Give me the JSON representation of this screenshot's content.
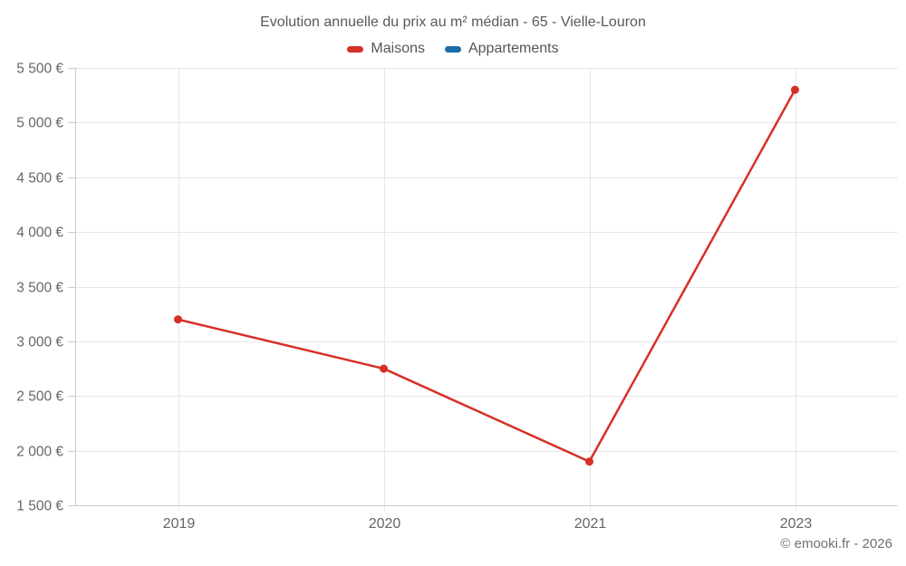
{
  "title": "Evolution annuelle du prix au m² médian - 65 - Vielle-Louron",
  "legend": [
    {
      "label": "Maisons",
      "color": "#d73027"
    },
    {
      "label": "Appartements",
      "color": "#1b6ca8"
    }
  ],
  "footer": {
    "copyright": "© emooki.fr - 2026"
  },
  "colors": {
    "gridline": "#e6e6e6",
    "axis": "#cccccc",
    "tick_text": "#666666"
  },
  "chart_data": {
    "type": "line",
    "title": "Evolution annuelle du prix au m² médian - 65 - Vielle-Louron",
    "categories": [
      "2019",
      "2020",
      "2021",
      "2023"
    ],
    "series": [
      {
        "name": "Maisons",
        "color": "#d73027",
        "values": [
          3200,
          2750,
          1900,
          5300
        ]
      },
      {
        "name": "Appartements",
        "color": "#1b6ca8",
        "values": []
      }
    ],
    "xlabel": "",
    "ylabel": "",
    "ylim": [
      1500,
      5500
    ],
    "ytick_step": 500,
    "ytick_labels": [
      "1 500 €",
      "2 000 €",
      "2 500 €",
      "3 000 €",
      "3 500 €",
      "4 000 €",
      "4 500 €",
      "5 000 €",
      "5 500 €"
    ],
    "grid": true,
    "legend_position": "top",
    "marker": "circle"
  }
}
